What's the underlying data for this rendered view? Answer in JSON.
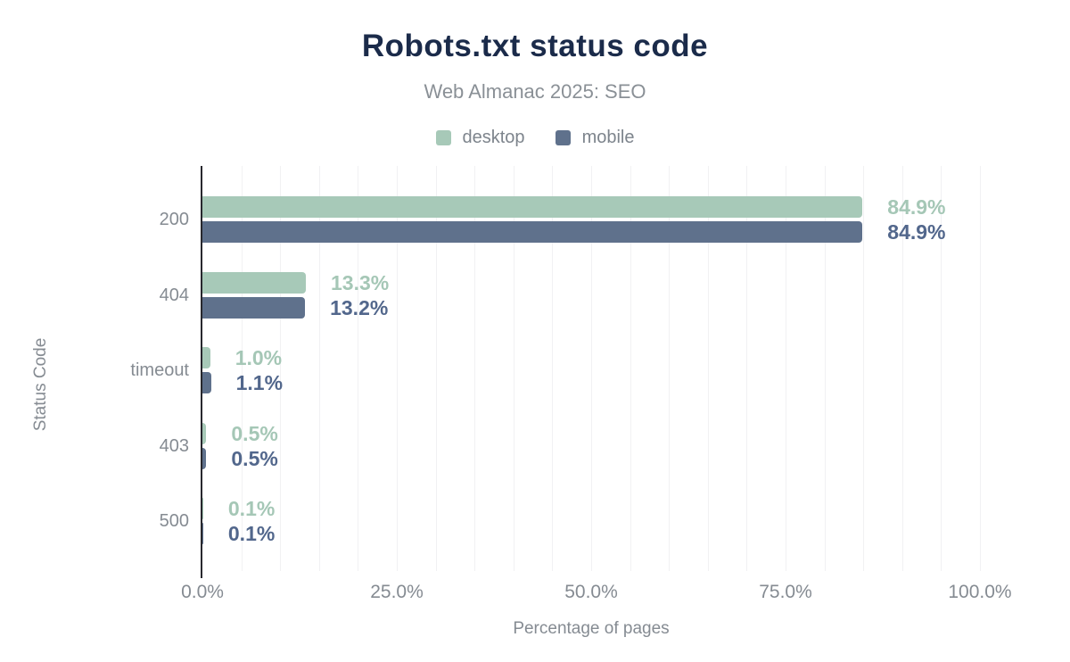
{
  "header": {
    "title": "Robots.txt status code",
    "subtitle": "Web Almanac 2025: SEO"
  },
  "chart_data": {
    "type": "bar",
    "orientation": "horizontal",
    "title": "Robots.txt status code",
    "subtitle": "Web Almanac 2025: SEO",
    "categories": [
      "200",
      "404",
      "timeout",
      "403",
      "500"
    ],
    "series": [
      {
        "name": "desktop",
        "color": "#a7c9b8",
        "label_color": "#a5c7b6",
        "values": [
          84.9,
          13.3,
          1.0,
          0.5,
          0.1
        ],
        "labels": [
          "84.9%",
          "13.3%",
          "1.0%",
          "0.5%",
          "0.1%"
        ]
      },
      {
        "name": "mobile",
        "color": "#5f718c",
        "label_color": "#52678c",
        "values": [
          84.9,
          13.2,
          1.1,
          0.5,
          0.1
        ],
        "labels": [
          "84.9%",
          "13.2%",
          "1.1%",
          "0.5%",
          "0.1%"
        ]
      }
    ],
    "xlabel": "Percentage of pages",
    "ylabel": "Status Code",
    "xlim": [
      0,
      100
    ],
    "x_ticks": [
      {
        "value": 0,
        "label": "0.0%"
      },
      {
        "value": 25,
        "label": "25.0%"
      },
      {
        "value": 50,
        "label": "50.0%"
      },
      {
        "value": 75,
        "label": "75.0%"
      },
      {
        "value": 100,
        "label": "100.0%"
      }
    ],
    "grid": {
      "show": true,
      "minor_step": 5,
      "color": "#f1f1f3"
    },
    "legend_position": "top"
  },
  "colors": {
    "title_text": "#1b2b4a",
    "muted_text": "#858b92",
    "axis_line": "#28282e",
    "background": "#ffffff"
  }
}
